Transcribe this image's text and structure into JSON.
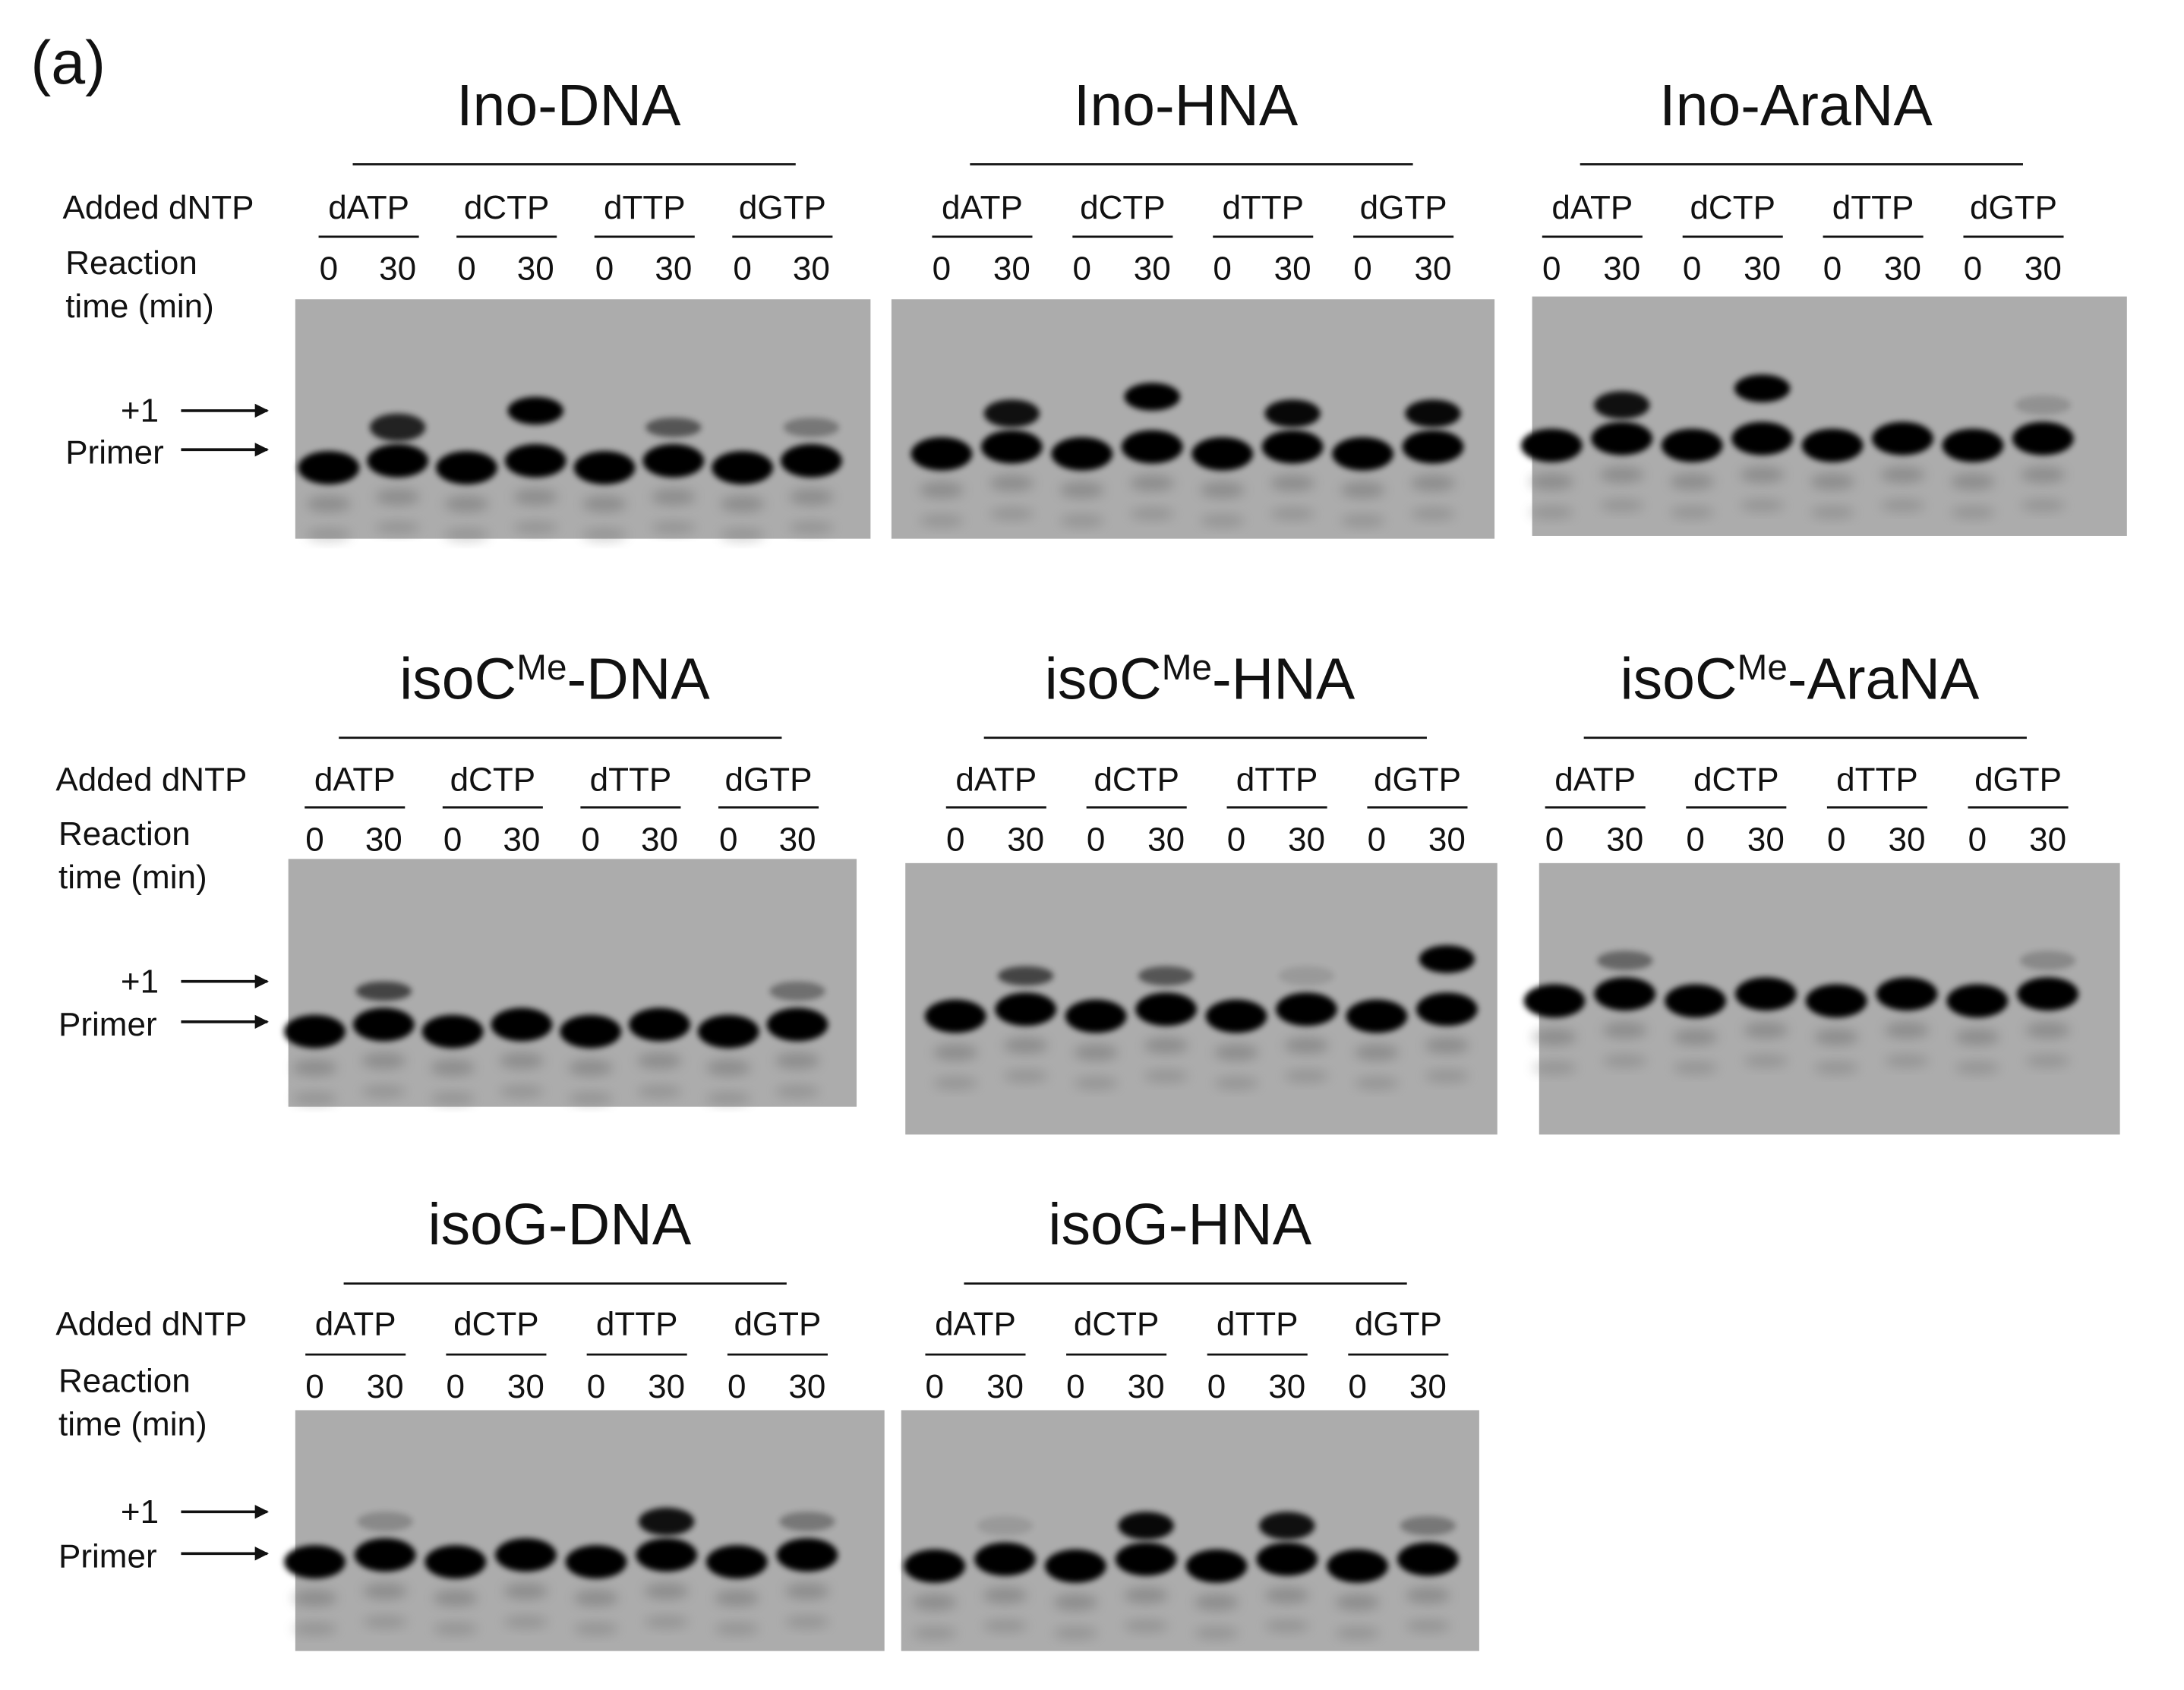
{
  "panel_label": "(a)",
  "rows": [
    {
      "labels": {
        "added": "Added dNTP",
        "reaction": "Reaction",
        "time": "time (min)",
        "plus": "+1",
        "primer": "Primer"
      },
      "panels": [
        {
          "title_main": "Ino-DNA",
          "groups": [
            {
              "dntp": "dATP",
              "times": [
                0,
                30
              ]
            },
            {
              "dntp": "dCTP",
              "times": [
                0,
                30
              ]
            },
            {
              "dntp": "dTTP",
              "times": [
                0,
                30
              ]
            },
            {
              "dntp": "dGTP",
              "times": [
                0,
                30
              ]
            }
          ]
        },
        {
          "title_main": "Ino-HNA",
          "groups": [
            {
              "dntp": "dATP",
              "times": [
                0,
                30
              ]
            },
            {
              "dntp": "dCTP",
              "times": [
                0,
                30
              ]
            },
            {
              "dntp": "dTTP",
              "times": [
                0,
                30
              ]
            },
            {
              "dntp": "dGTP",
              "times": [
                0,
                30
              ]
            }
          ]
        },
        {
          "title_main": "Ino-AraNA",
          "groups": [
            {
              "dntp": "dATP",
              "times": [
                0,
                30
              ]
            },
            {
              "dntp": "dCTP",
              "times": [
                0,
                30
              ]
            },
            {
              "dntp": "dTTP",
              "times": [
                0,
                30
              ]
            },
            {
              "dntp": "dGTP",
              "times": [
                0,
                30
              ]
            }
          ]
        }
      ]
    },
    {
      "labels": {
        "added": "Added dNTP",
        "reaction": "Reaction",
        "time": "time (min)",
        "plus": "+1",
        "primer": "Primer"
      },
      "panels": [
        {
          "title_main": "isoC",
          "title_sup": "Me",
          "title_rest": "-DNA",
          "groups": [
            {
              "dntp": "dATP",
              "times": [
                0,
                30
              ]
            },
            {
              "dntp": "dCTP",
              "times": [
                0,
                30
              ]
            },
            {
              "dntp": "dTTP",
              "times": [
                0,
                30
              ]
            },
            {
              "dntp": "dGTP",
              "times": [
                0,
                30
              ]
            }
          ]
        },
        {
          "title_main": "isoC",
          "title_sup": "Me",
          "title_rest": "-HNA",
          "groups": [
            {
              "dntp": "dATP",
              "times": [
                0,
                30
              ]
            },
            {
              "dntp": "dCTP",
              "times": [
                0,
                30
              ]
            },
            {
              "dntp": "dTTP",
              "times": [
                0,
                30
              ]
            },
            {
              "dntp": "dGTP",
              "times": [
                0,
                30
              ]
            }
          ]
        },
        {
          "title_main": "isoC",
          "title_sup": "Me",
          "title_rest": "-AraNA",
          "groups": [
            {
              "dntp": "dATP",
              "times": [
                0,
                30
              ]
            },
            {
              "dntp": "dCTP",
              "times": [
                0,
                30
              ]
            },
            {
              "dntp": "dTTP",
              "times": [
                0,
                30
              ]
            },
            {
              "dntp": "dGTP",
              "times": [
                0,
                30
              ]
            }
          ]
        }
      ]
    },
    {
      "labels": {
        "added": "Added dNTP",
        "reaction": "Reaction",
        "time": "time (min)",
        "plus": "+1",
        "primer": "Primer"
      },
      "panels": [
        {
          "title_main": "isoG-DNA",
          "groups": [
            {
              "dntp": "dATP",
              "times": [
                0,
                30
              ]
            },
            {
              "dntp": "dCTP",
              "times": [
                0,
                30
              ]
            },
            {
              "dntp": "dTTP",
              "times": [
                0,
                30
              ]
            },
            {
              "dntp": "dGTP",
              "times": [
                0,
                30
              ]
            }
          ]
        },
        {
          "title_main": "isoG-HNA",
          "groups": [
            {
              "dntp": "dATP",
              "times": [
                0,
                30
              ]
            },
            {
              "dntp": "dCTP",
              "times": [
                0,
                30
              ]
            },
            {
              "dntp": "dTTP",
              "times": [
                0,
                30
              ]
            },
            {
              "dntp": "dGTP",
              "times": [
                0,
                30
              ]
            }
          ]
        }
      ]
    }
  ]
}
